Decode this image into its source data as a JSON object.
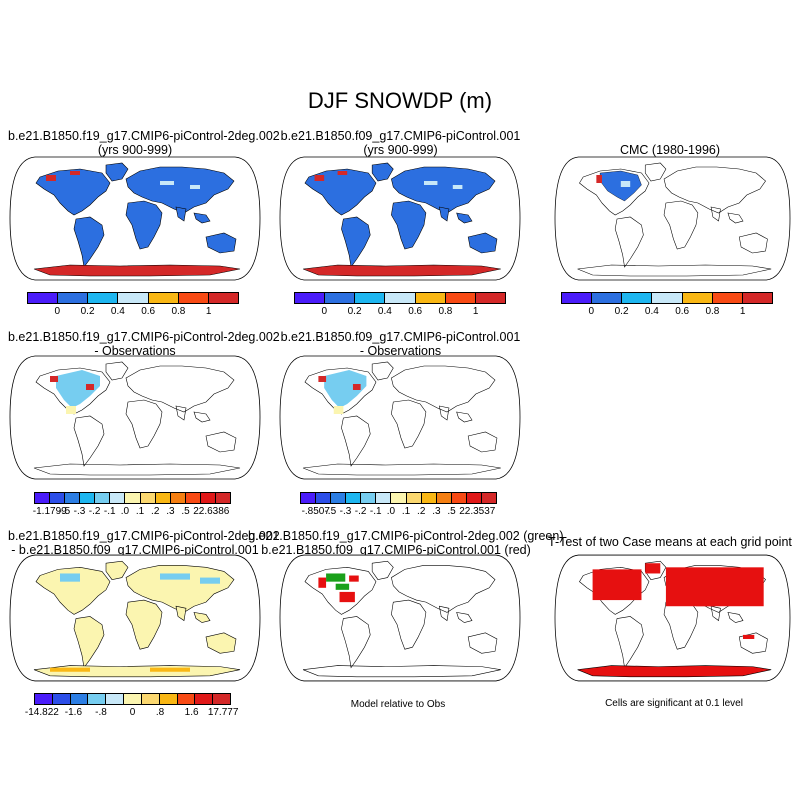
{
  "title": "DJF SNOWDP (m)",
  "panels": [
    {
      "title1": "b.e21.B1850.f19_g17.CMIP6-piControl-2deg.002",
      "title2": "(yrs 900-999)"
    },
    {
      "title1": "b.e21.B1850.f09_g17.CMIP6-piControl.001",
      "title2": "(yrs 900-999)"
    },
    {
      "title1": "CMC (1980-1996)",
      "title2": ""
    },
    {
      "title1": "b.e21.B1850.f19_g17.CMIP6-piControl-2deg.002",
      "title2": "- Observations"
    },
    {
      "title1": "b.e21.B1850.f09_g17.CMIP6-piControl.001",
      "title2": "- Observations"
    },
    {
      "title1": "b.e21.B1850.f19_g17.CMIP6-piControl-2deg.002",
      "title2": "- b.e21.B1850.f09_g17.CMIP6-piControl.001"
    },
    {
      "title1": "b.e21.B1850.f19_g17.CMIP6-piControl-2deg.002 (green)",
      "title2": "b.e21.B1850.f09_g17.CMIP6-piControl.001 (red)"
    },
    {
      "title1": "T-Test of two Case means at each grid point",
      "title2": ""
    }
  ],
  "notes": {
    "model_relative": "Model relative to Obs",
    "significance": "Cells are significant at 0.1 level"
  },
  "colorbars": {
    "abs": {
      "colors": [
        "#4a1cfa",
        "#2c6fe0",
        "#1eb6f0",
        "#c8e8f8",
        "#f9b714",
        "#f84a14",
        "#d42828"
      ],
      "labels": [
        "0",
        "0.2",
        "0.4",
        "0.6",
        "0.8",
        "1"
      ]
    },
    "diff1": {
      "colors": [
        "#4a1cfa",
        "#2c4ee8",
        "#2c7ee4",
        "#1eb6f0",
        "#76cdf0",
        "#c8e8f8",
        "#fbf5b0",
        "#fbd870",
        "#f9b714",
        "#f57f12",
        "#f84a14",
        "#e01818",
        "#d42828"
      ],
      "labels": [
        "-1.1799",
        "-.5",
        "-.3",
        "-.2",
        "-.1",
        ".0",
        ".1",
        ".2",
        ".3",
        ".5",
        "22.6386"
      ]
    },
    "diff2": {
      "colors": [
        "#4a1cfa",
        "#2c4ee8",
        "#2c7ee4",
        "#1eb6f0",
        "#76cdf0",
        "#c8e8f8",
        "#fbf5b0",
        "#fbd870",
        "#f9b714",
        "#f57f12",
        "#f84a14",
        "#e01818",
        "#d42828"
      ],
      "labels": [
        "-.8507",
        "-.5",
        "-.3",
        "-.2",
        "-.1",
        ".0",
        ".1",
        ".2",
        ".3",
        ".5",
        "22.3537"
      ]
    },
    "diff3": {
      "colors": [
        "#4a1cfa",
        "#2c4ee8",
        "#2c7ee4",
        "#76cdf0",
        "#c8e8f8",
        "#fbf5b0",
        "#fbd870",
        "#f9b714",
        "#f84a14",
        "#e01818",
        "#d42828"
      ],
      "labels": [
        "-14.822",
        "-1.6",
        "-.8",
        "0",
        ".8",
        "1.6",
        "17.777"
      ]
    }
  },
  "colors": {
    "land_snow": "#2c6fe0",
    "antarctica": "#d42828",
    "diff_land": "#fbf5b0",
    "diff_cold": "#76cdf0",
    "sig_red": "#e61010",
    "sig_green": "#1aa01a"
  }
}
